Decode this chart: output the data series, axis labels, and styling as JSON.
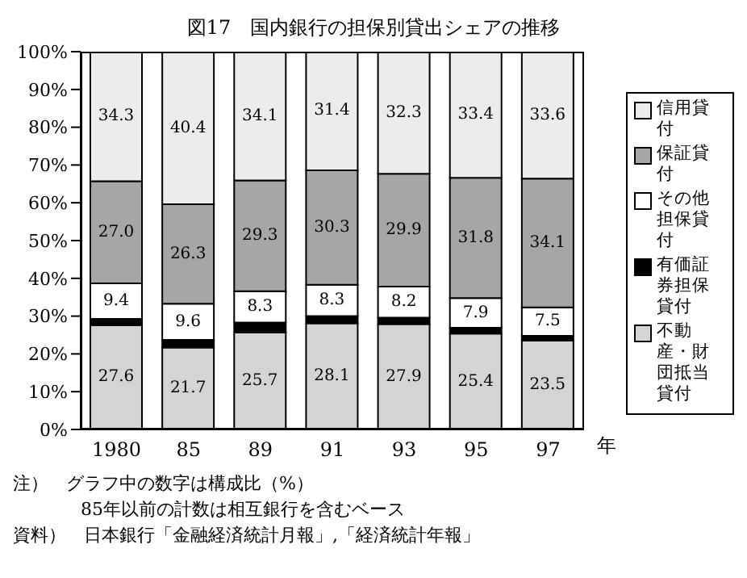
{
  "chart_data": {
    "type": "bar",
    "title": "図17　国内銀行の担保別貸出シェアの推移",
    "xlabel": "年",
    "categories": [
      "1980",
      "85",
      "89",
      "91",
      "93",
      "95",
      "97"
    ],
    "stacked": true,
    "legend": "right",
    "grid": false,
    "ylim": [
      0,
      100
    ],
    "yticks": [
      {
        "value": 0,
        "label": "0%"
      },
      {
        "value": 10,
        "label": "10%"
      },
      {
        "value": 20,
        "label": "20%"
      },
      {
        "value": 30,
        "label": "30%"
      },
      {
        "value": 40,
        "label": "40%"
      },
      {
        "value": 50,
        "label": "50%"
      },
      {
        "value": 60,
        "label": "60%"
      },
      {
        "value": 70,
        "label": "70%"
      },
      {
        "value": 80,
        "label": "80%"
      },
      {
        "value": 90,
        "label": "90%"
      },
      {
        "value": 100,
        "label": "100%"
      }
    ],
    "series": [
      {
        "name": "不動産・財団抵当貸付",
        "color": "#d4d4d4",
        "values": [
          27.6,
          21.7,
          25.7,
          28.1,
          27.9,
          25.4,
          23.5
        ],
        "value_labels": [
          "27.6",
          "21.7",
          "25.7",
          "28.1",
          "27.9",
          "25.4",
          "23.5"
        ]
      },
      {
        "name": "有価証券担保貸付",
        "color": "#000000",
        "values": [
          1.7,
          2.0,
          2.6,
          1.9,
          1.7,
          1.5,
          1.3
        ]
      },
      {
        "name": "その他担保貸付",
        "color": "#ffffff",
        "values": [
          9.4,
          9.6,
          8.3,
          8.3,
          8.2,
          7.9,
          7.5
        ],
        "value_labels": [
          "9.4",
          "9.6",
          "8.3",
          "8.3",
          "8.2",
          "7.9",
          "7.5"
        ]
      },
      {
        "name": "保証貸付",
        "color": "#a6a6a6",
        "values": [
          27.0,
          26.3,
          29.3,
          30.3,
          29.9,
          31.8,
          34.1
        ],
        "value_labels": [
          "27.0",
          "26.3",
          "29.3",
          "30.3",
          "29.9",
          "31.8",
          "34.1"
        ]
      },
      {
        "name": "信用貸付",
        "color": "#ececec",
        "values": [
          34.3,
          40.4,
          34.1,
          31.4,
          32.3,
          33.4,
          33.6
        ],
        "value_labels": [
          "34.3",
          "40.4",
          "34.1",
          "31.4",
          "32.3",
          "33.4",
          "33.6"
        ]
      }
    ],
    "annotations": [
      "注）　グラフ中の数字は構成比（%）",
      "85年以前の計数は相互銀行を含むベース",
      "資料）　日本銀行「金融経済統計月報」,「経済統計年報」"
    ]
  }
}
